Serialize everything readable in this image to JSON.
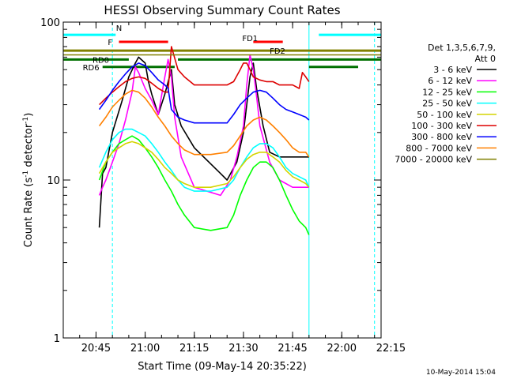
{
  "chart_data": {
    "type": "line",
    "title": "HESSI Observing Summary Count Rates",
    "xlabel": "Start Time (09-May-14 20:35:22)",
    "ylabel": "Count Rate (s",
    "ylabel_sup": "-1",
    "ylabel_tail": " detector",
    "ylabel_end": ")",
    "x_scale": "time (minutes after 20:35:22)",
    "xlim": [
      0,
      97
    ],
    "y_scale": "log",
    "ylim": [
      1,
      100
    ],
    "x_ticks": [
      {
        "x": 10,
        "label": "20:45"
      },
      {
        "x": 25,
        "label": "21:00"
      },
      {
        "x": 40,
        "label": "21:15"
      },
      {
        "x": 55,
        "label": "21:30"
      },
      {
        "x": 70,
        "label": "21:45"
      },
      {
        "x": 85,
        "label": "22:00"
      },
      {
        "x": 100,
        "label": "22:15"
      }
    ],
    "y_ticks": [
      {
        "y": 1,
        "label": "1"
      },
      {
        "y": 10,
        "label": "10"
      },
      {
        "y": 100,
        "label": "100"
      }
    ],
    "grid": false,
    "legend": {
      "placement": "right",
      "header": [
        "Det 1,3,5,6,7,9,",
        "Att 0"
      ]
    },
    "series": [
      {
        "name": "3 - 6 keV",
        "color": "#000000",
        "x": [
          11,
          12,
          13,
          15,
          18,
          20,
          22,
          23,
          25,
          26,
          27,
          29,
          31,
          33,
          34,
          36,
          40,
          48,
          50,
          53,
          55,
          56,
          57,
          58,
          59,
          61,
          63,
          66,
          70,
          74,
          75
        ],
        "y": [
          5,
          11,
          12,
          20,
          32,
          45,
          55,
          60,
          55,
          42,
          35,
          26,
          35,
          50,
          30,
          22,
          16,
          11,
          10,
          13,
          20,
          30,
          45,
          55,
          38,
          22,
          15,
          14,
          14,
          14,
          14
        ]
      },
      {
        "name": "6 - 12 keV",
        "color": "#ff00ff",
        "x": [
          11,
          12,
          13,
          15,
          17,
          19,
          21,
          22,
          23,
          25,
          27,
          29,
          31,
          32,
          33,
          34,
          36,
          40,
          48,
          51,
          53,
          55,
          56,
          57,
          58,
          59,
          60,
          63,
          66,
          70,
          74,
          75
        ],
        "y": [
          8,
          9,
          10,
          13,
          17,
          24,
          36,
          52,
          48,
          38,
          32,
          26,
          45,
          58,
          45,
          25,
          14,
          9,
          8,
          10,
          14,
          22,
          40,
          62,
          50,
          34,
          22,
          13,
          10,
          9,
          9,
          9
        ]
      },
      {
        "name": "12 - 25 keV",
        "color": "#00ff00",
        "x": [
          11,
          13,
          15,
          17,
          19,
          21,
          23,
          25,
          27,
          29,
          31,
          33,
          35,
          37,
          40,
          45,
          50,
          52,
          54,
          56,
          58,
          60,
          62,
          64,
          66,
          68,
          70,
          72,
          74,
          75
        ],
        "y": [
          10,
          13,
          15,
          17,
          18,
          19,
          18,
          16,
          14,
          12,
          10,
          8.5,
          7,
          6,
          5,
          4.8,
          5,
          6,
          8,
          10,
          12,
          13,
          13,
          12,
          10,
          8,
          6.5,
          5.5,
          5,
          4.5
        ]
      },
      {
        "name": "25 - 50 keV",
        "color": "#00ffff",
        "x": [
          11,
          13,
          15,
          17,
          19,
          21,
          23,
          25,
          27,
          29,
          31,
          33,
          35,
          37,
          40,
          45,
          50,
          52,
          54,
          56,
          58,
          60,
          62,
          64,
          66,
          68,
          70,
          72,
          74,
          75
        ],
        "y": [
          12,
          15,
          18,
          20,
          21,
          21,
          20,
          19,
          17,
          15,
          13,
          11.5,
          10,
          9,
          8.5,
          8.5,
          9,
          10,
          12,
          14,
          16,
          17,
          17,
          16,
          14,
          12,
          11,
          10.5,
          10,
          9
        ]
      },
      {
        "name": "50 - 100 keV",
        "color": "#d4d400",
        "x": [
          11,
          13,
          15,
          17,
          19,
          21,
          23,
          25,
          27,
          29,
          31,
          33,
          35,
          37,
          40,
          45,
          50,
          52,
          54,
          56,
          58,
          60,
          62,
          64,
          66,
          68,
          70,
          72,
          74,
          75
        ],
        "y": [
          11,
          13,
          15,
          16,
          17,
          17.5,
          17,
          16,
          15,
          13.5,
          12,
          11,
          10,
          9.5,
          9,
          9,
          9.5,
          10.5,
          12,
          13.5,
          14.5,
          15,
          15,
          14,
          13,
          11.5,
          10.5,
          10,
          9.5,
          9
        ]
      },
      {
        "name": "100 - 300 keV",
        "color": "#dd0000",
        "x": [
          11,
          13,
          15,
          17,
          19,
          21,
          23,
          25,
          27,
          29,
          31,
          32,
          33,
          35,
          37,
          40,
          45,
          50,
          52,
          54,
          55,
          56,
          57,
          58,
          60,
          62,
          64,
          66,
          68,
          70,
          72,
          73,
          74,
          75
        ],
        "y": [
          30,
          33,
          36,
          39,
          42,
          44,
          45,
          44,
          41,
          38,
          36,
          36,
          70,
          50,
          45,
          40,
          40,
          40,
          42,
          50,
          55,
          55,
          50,
          45,
          43,
          42,
          42,
          40,
          40,
          40,
          38,
          48,
          45,
          42
        ]
      },
      {
        "name": "300 - 800 keV",
        "color": "#0000ff",
        "x": [
          11,
          13,
          15,
          17,
          19,
          21,
          23,
          25,
          27,
          29,
          31,
          32,
          33,
          35,
          37,
          40,
          45,
          50,
          52,
          54,
          56,
          58,
          60,
          62,
          64,
          66,
          68,
          70,
          72,
          74,
          75
        ],
        "y": [
          28,
          32,
          37,
          42,
          47,
          52,
          55,
          53,
          48,
          43,
          40,
          38,
          28,
          25,
          24,
          23,
          23,
          23,
          26,
          30,
          33,
          36,
          37,
          36,
          33,
          30,
          28,
          27,
          26,
          25,
          24
        ]
      },
      {
        "name": "800 - 7000 keV",
        "color": "#ff8000",
        "x": [
          11,
          13,
          15,
          17,
          19,
          21,
          23,
          25,
          27,
          29,
          31,
          33,
          35,
          37,
          40,
          45,
          50,
          52,
          54,
          56,
          58,
          60,
          62,
          64,
          66,
          68,
          70,
          72,
          74,
          75
        ],
        "y": [
          22,
          25,
          29,
          32,
          35,
          37,
          36,
          33,
          29,
          25,
          22,
          19,
          17,
          15.5,
          14.5,
          14.5,
          15,
          16.5,
          19,
          22,
          24,
          25,
          24,
          22,
          20,
          18,
          16,
          15,
          15,
          14
        ]
      },
      {
        "name": "7000 - 20000 keV",
        "color": "#808000",
        "x": [
          0,
          20,
          40,
          60,
          80,
          97
        ],
        "y": [
          62,
          62,
          62,
          62,
          62,
          62
        ]
      }
    ],
    "flag_bars": [
      {
        "label": "N",
        "color": "#00ffff",
        "y": 83,
        "segments": [
          [
            0,
            16
          ],
          [
            78,
            97
          ]
        ]
      },
      {
        "label": "F",
        "color": "#ff0000",
        "y": 75,
        "segments": [
          [
            17,
            32
          ]
        ]
      },
      {
        "label": "FD1",
        "color": "#ff0000",
        "y": 75,
        "segments": [
          [
            58,
            67
          ]
        ]
      },
      {
        "label": "FD2",
        "color": "#808000",
        "y": 66,
        "segments": [
          [
            0,
            97
          ]
        ]
      },
      {
        "label": "RD0",
        "color": "#007000",
        "y": 58,
        "segments": [
          [
            0,
            20
          ],
          [
            35,
            97
          ]
        ]
      },
      {
        "label": "RD6",
        "color": "#007000",
        "y": 52,
        "segments": [
          [
            12,
            34
          ],
          [
            75,
            90
          ]
        ]
      }
    ],
    "vertical_markers": [
      {
        "x": 0,
        "color": "#00ffff",
        "style": "solid"
      },
      {
        "x": 15,
        "color": "#00ffff",
        "style": "dashed"
      },
      {
        "x": 75,
        "color": "#00ffff",
        "style": "solid"
      },
      {
        "x": 95,
        "color": "#00ffff",
        "style": "dashed"
      }
    ]
  },
  "footer": {
    "date_stamp": "10-May-2014 15:04"
  }
}
